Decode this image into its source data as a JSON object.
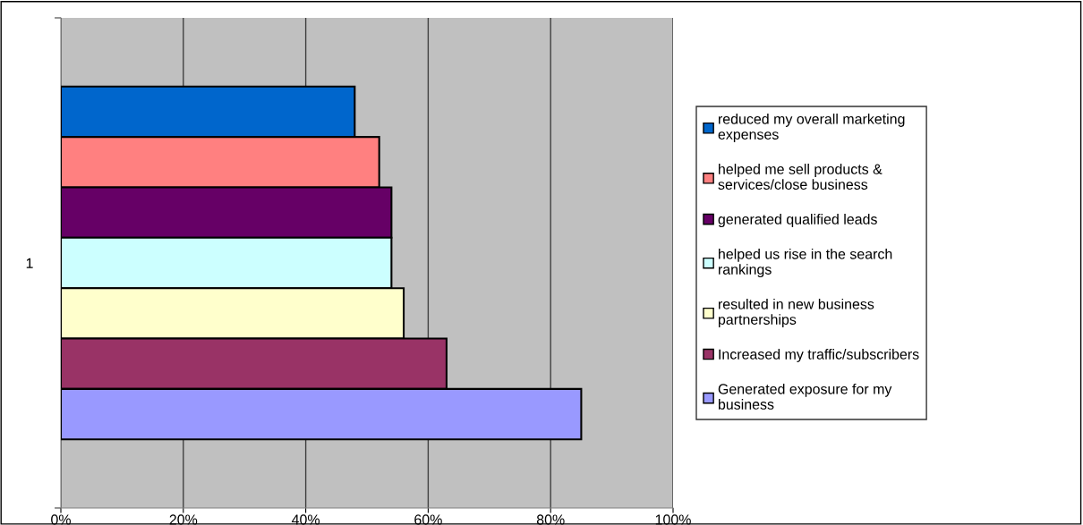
{
  "chart_data": {
    "type": "bar",
    "orientation": "horizontal",
    "categories": [
      "1"
    ],
    "series": [
      {
        "name": "reduced my overall marketing expenses",
        "color": "#0066cc",
        "values": [
          48
        ]
      },
      {
        "name": "helped me sell products & services/close business",
        "color": "#ff8080",
        "values": [
          52
        ]
      },
      {
        "name": "generated qualified leads",
        "color": "#660066",
        "values": [
          54
        ]
      },
      {
        "name": "helped us rise in the search rankings",
        "color": "#ccffff",
        "values": [
          54
        ]
      },
      {
        "name": "resulted in new business partnerships",
        "color": "#ffffcc",
        "values": [
          56
        ]
      },
      {
        "name": "Increased my traffic/subscribers",
        "color": "#993366",
        "values": [
          63
        ]
      },
      {
        "name": "Generated exposure for my business",
        "color": "#9999ff",
        "values": [
          85
        ]
      }
    ],
    "xlim": [
      0,
      100
    ],
    "xticks": [
      {
        "value": 0,
        "label": "0%"
      },
      {
        "value": 20,
        "label": "20%"
      },
      {
        "value": 40,
        "label": "40%"
      },
      {
        "value": 60,
        "label": "60%"
      },
      {
        "value": 80,
        "label": "80%"
      },
      {
        "value": 100,
        "label": "100%"
      }
    ],
    "grid": "x",
    "legend": "right"
  }
}
